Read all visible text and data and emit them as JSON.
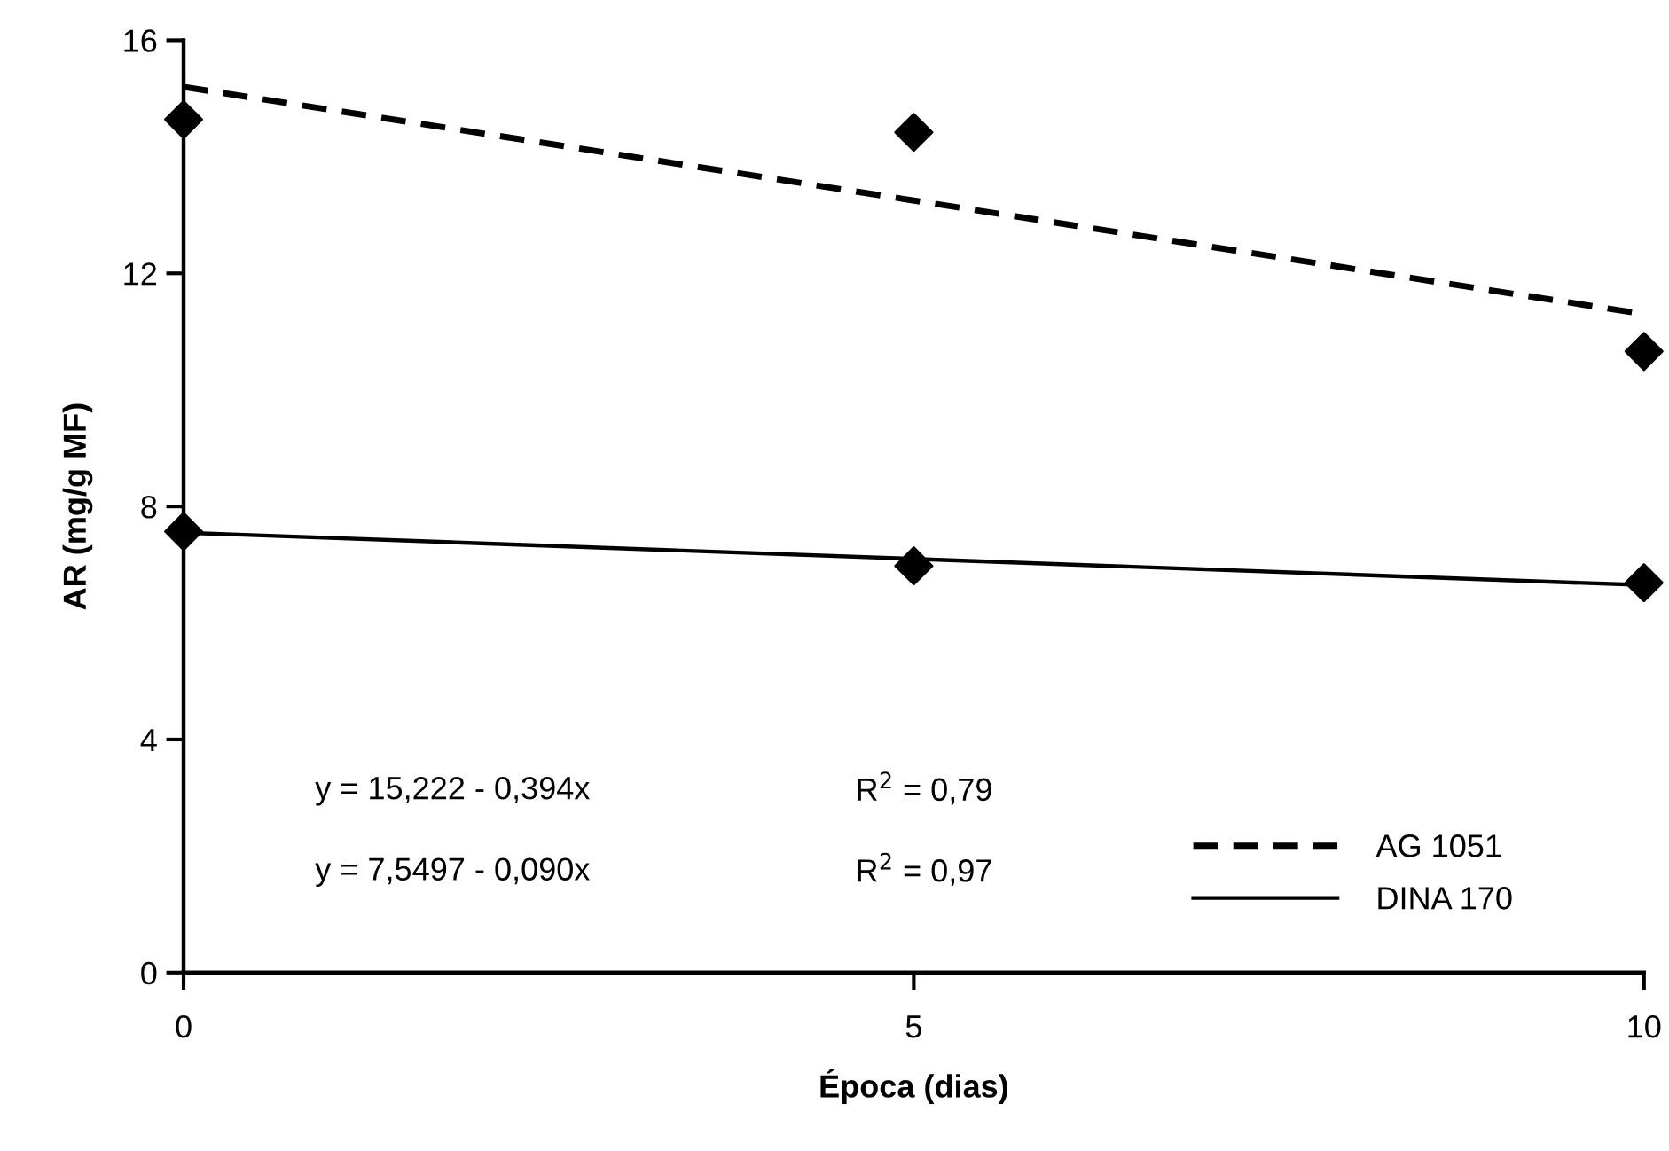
{
  "chart_data": {
    "type": "line",
    "xlabel": "Época (dias)",
    "ylabel": "AR (mg/g MF)",
    "xlim": [
      0,
      10
    ],
    "xticks": [
      0,
      5,
      10
    ],
    "ylim": [
      0,
      16
    ],
    "yticks": [
      0,
      4,
      8,
      12,
      16
    ],
    "grid": false,
    "legend": "bottom right",
    "series": [
      {
        "type": "scatter",
        "color": "#000000",
        "marker": "diamond",
        "x": [
          0,
          5,
          10
        ],
        "values": [
          14.64,
          14.42,
          10.66
        ]
      },
      {
        "type": "scatter",
        "color": "#000000",
        "marker": "diamond",
        "x": [
          0,
          5,
          10
        ],
        "values": [
          7.57,
          6.98,
          6.69
        ]
      },
      {
        "name": "AG 1051",
        "color": "#000000",
        "line_style": "dashed",
        "marker": "none",
        "x": [
          0,
          10
        ],
        "values": [
          15.2,
          11.3
        ]
      },
      {
        "name": "DINA 170",
        "color": "#000000",
        "line_style": "solid",
        "marker": "none",
        "x": [
          0,
          10
        ],
        "values": [
          7.55,
          6.65
        ]
      }
    ],
    "annotations": [
      "y = 15,222 - 0,394x",
      "R$^{2}$ = 0,79",
      "y = 7,5497 - 0,090x",
      "R$^{2}$ = 0,97"
    ]
  }
}
